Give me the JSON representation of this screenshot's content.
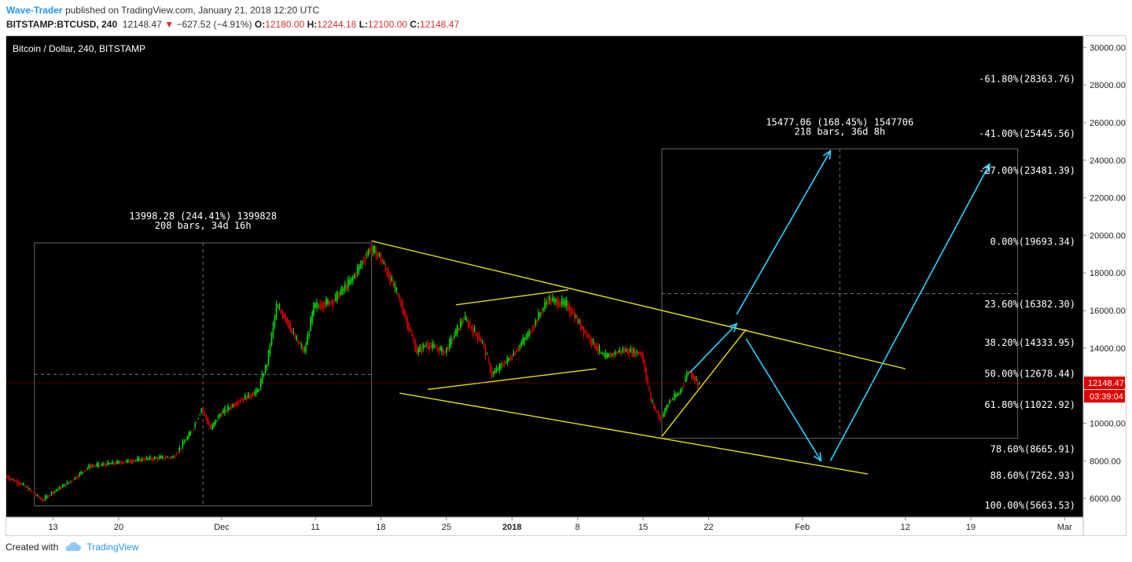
{
  "header": {
    "author": "Wave-Trader",
    "published": "published on TradingView.com, January 21, 2018 12:20 UTC",
    "symbol": "BITSTAMP:BTCUSD, 240",
    "last": "12148.47",
    "change": "−627.52 (−4.91%)",
    "o_label": "O:",
    "o_value": "12180.00",
    "h_label": "H:",
    "h_value": "12244.18",
    "l_label": "L:",
    "l_value": "12100.00",
    "c_label": "C:",
    "c_value": "12148.47"
  },
  "footer": {
    "created_with": "Created with",
    "brand": "TradingView"
  },
  "colors": {
    "background": "#000000",
    "up": "#00e600",
    "down": "#e00000",
    "trend": "#e8e000",
    "projection": "#29d3ff",
    "price_line": "#e00000",
    "axis_text": "#222222"
  },
  "chart_data": {
    "type": "candlestick",
    "title": "Bitcoin / Dollar, 240, BITSTAMP",
    "xlabel": "",
    "ylabel": "",
    "ylim": [
      5000,
      30600
    ],
    "y_ticks": [
      "30000.00",
      "28000.00",
      "26000.00",
      "24000.00",
      "22000.00",
      "20000.00",
      "18000.00",
      "16000.00",
      "14000.00",
      "12000.00",
      "10000.00",
      "8000.00",
      "6000.00"
    ],
    "x_ticks": [
      "13",
      "20",
      "Dec",
      "11",
      "18",
      "25",
      "2018",
      "8",
      "15",
      "22",
      "Feb",
      "12",
      "19",
      "Mar"
    ],
    "x_tick_dates": [
      "2017-11-13",
      "2017-11-20",
      "2017-12-01",
      "2017-12-11",
      "2017-12-18",
      "2017-12-25",
      "2018-01-01",
      "2018-01-08",
      "2018-01-15",
      "2018-01-22",
      "2018-02-01",
      "2018-02-12",
      "2018-02-19",
      "2018-03-01"
    ],
    "x_range": [
      "2017-11-08",
      "2018-03-03"
    ],
    "price": [
      [
        "2017-11-08",
        7200
      ],
      [
        "2017-11-10",
        6700
      ],
      [
        "2017-11-12",
        5900
      ],
      [
        "2017-11-13",
        6300
      ],
      [
        "2017-11-15",
        6900
      ],
      [
        "2017-11-17",
        7700
      ],
      [
        "2017-11-20",
        7900
      ],
      [
        "2017-11-23",
        8100
      ],
      [
        "2017-11-26",
        8200
      ],
      [
        "2017-11-28",
        9600
      ],
      [
        "2017-11-29",
        10800
      ],
      [
        "2017-11-30",
        9700
      ],
      [
        "2017-12-01",
        10500
      ],
      [
        "2017-12-03",
        11200
      ],
      [
        "2017-12-05",
        11700
      ],
      [
        "2017-12-06",
        13200
      ],
      [
        "2017-12-07",
        16200
      ],
      [
        "2017-12-08",
        15600
      ],
      [
        "2017-12-09",
        14500
      ],
      [
        "2017-12-10",
        13800
      ],
      [
        "2017-12-11",
        16200
      ],
      [
        "2017-12-13",
        16500
      ],
      [
        "2017-12-15",
        17600
      ],
      [
        "2017-12-17",
        19300
      ],
      [
        "2017-12-18",
        18900
      ],
      [
        "2017-12-20",
        16800
      ],
      [
        "2017-12-22",
        13800
      ],
      [
        "2017-12-23",
        14200
      ],
      [
        "2017-12-25",
        13800
      ],
      [
        "2017-12-27",
        15600
      ],
      [
        "2017-12-29",
        14300
      ],
      [
        "2017-12-30",
        12600
      ],
      [
        "2018-01-01",
        13500
      ],
      [
        "2018-01-03",
        14800
      ],
      [
        "2018-01-05",
        16600
      ],
      [
        "2018-01-07",
        16300
      ],
      [
        "2018-01-09",
        14800
      ],
      [
        "2018-01-11",
        13500
      ],
      [
        "2018-01-13",
        13900
      ],
      [
        "2018-01-15",
        13700
      ],
      [
        "2018-01-16",
        11200
      ],
      [
        "2018-01-17",
        10200
      ],
      [
        "2018-01-18",
        11200
      ],
      [
        "2018-01-19",
        11600
      ],
      [
        "2018-01-20",
        12800
      ],
      [
        "2018-01-21",
        12148
      ]
    ],
    "measure_boxes": [
      {
        "x0": "2017-11-11",
        "x1": "2017-12-17",
        "y0": 5600,
        "y1": 19600,
        "label1": "13998.28 (244.41%) 1399828",
        "label2": "208 bars, 34d 16h"
      },
      {
        "x0": "2018-01-17",
        "x1": "2018-02-24",
        "y0": 9200,
        "y1": 24600,
        "label1": "15477.06 (168.45%) 1547706",
        "label2": "218 bars, 36d 8h"
      }
    ],
    "trend_lines": [
      {
        "from": [
          "2017-12-17",
          19700
        ],
        "to": [
          "2018-02-12",
          12900
        ]
      },
      {
        "from": [
          "2017-12-20",
          11600
        ],
        "to": [
          "2018-02-08",
          7300
        ]
      },
      {
        "from": [
          "2017-12-23",
          11800
        ],
        "to": [
          "2018-01-10",
          12900
        ]
      },
      {
        "from": [
          "2017-12-26",
          16300
        ],
        "to": [
          "2018-01-07",
          17100
        ]
      },
      {
        "from": [
          "2018-01-17",
          9300
        ],
        "to": [
          "2018-01-26",
          15000
        ]
      }
    ],
    "projection_arrows": [
      [
        [
          "2018-01-20",
          12700
        ],
        [
          "2018-01-25",
          15300
        ]
      ],
      [
        [
          "2018-01-26",
          14500
        ],
        [
          "2018-02-03",
          8000
        ]
      ],
      [
        [
          "2018-01-25",
          15800
        ],
        [
          "2018-02-04",
          24500
        ]
      ],
      [
        [
          "2018-02-04",
          8000
        ],
        [
          "2018-02-21",
          23800
        ]
      ]
    ],
    "fib_levels": [
      {
        "label": "-61.80%(28363.76)",
        "value": 28363.76
      },
      {
        "label": "-41.00%(25445.56)",
        "value": 25445.56
      },
      {
        "label": "-27.00%(23481.39)",
        "value": 23481.39
      },
      {
        "label": "0.00%(19693.34)",
        "value": 19693.34
      },
      {
        "label": "23.60%(16382.30)",
        "value": 16382.3
      },
      {
        "label": "38.20%(14333.95)",
        "value": 14333.95
      },
      {
        "label": "50.00%(12678.44)",
        "value": 12678.44
      },
      {
        "label": "61.80%(11022.92)",
        "value": 11022.92
      },
      {
        "label": "78.60%(8665.91)",
        "value": 8665.91
      },
      {
        "label": "88.60%(7262.93)",
        "value": 7262.93
      },
      {
        "label": "100.00%(5663.53)",
        "value": 5663.53
      }
    ],
    "last_price": 12148.47,
    "last_price_label": "12148.47",
    "countdown_label": "03:39:04"
  }
}
